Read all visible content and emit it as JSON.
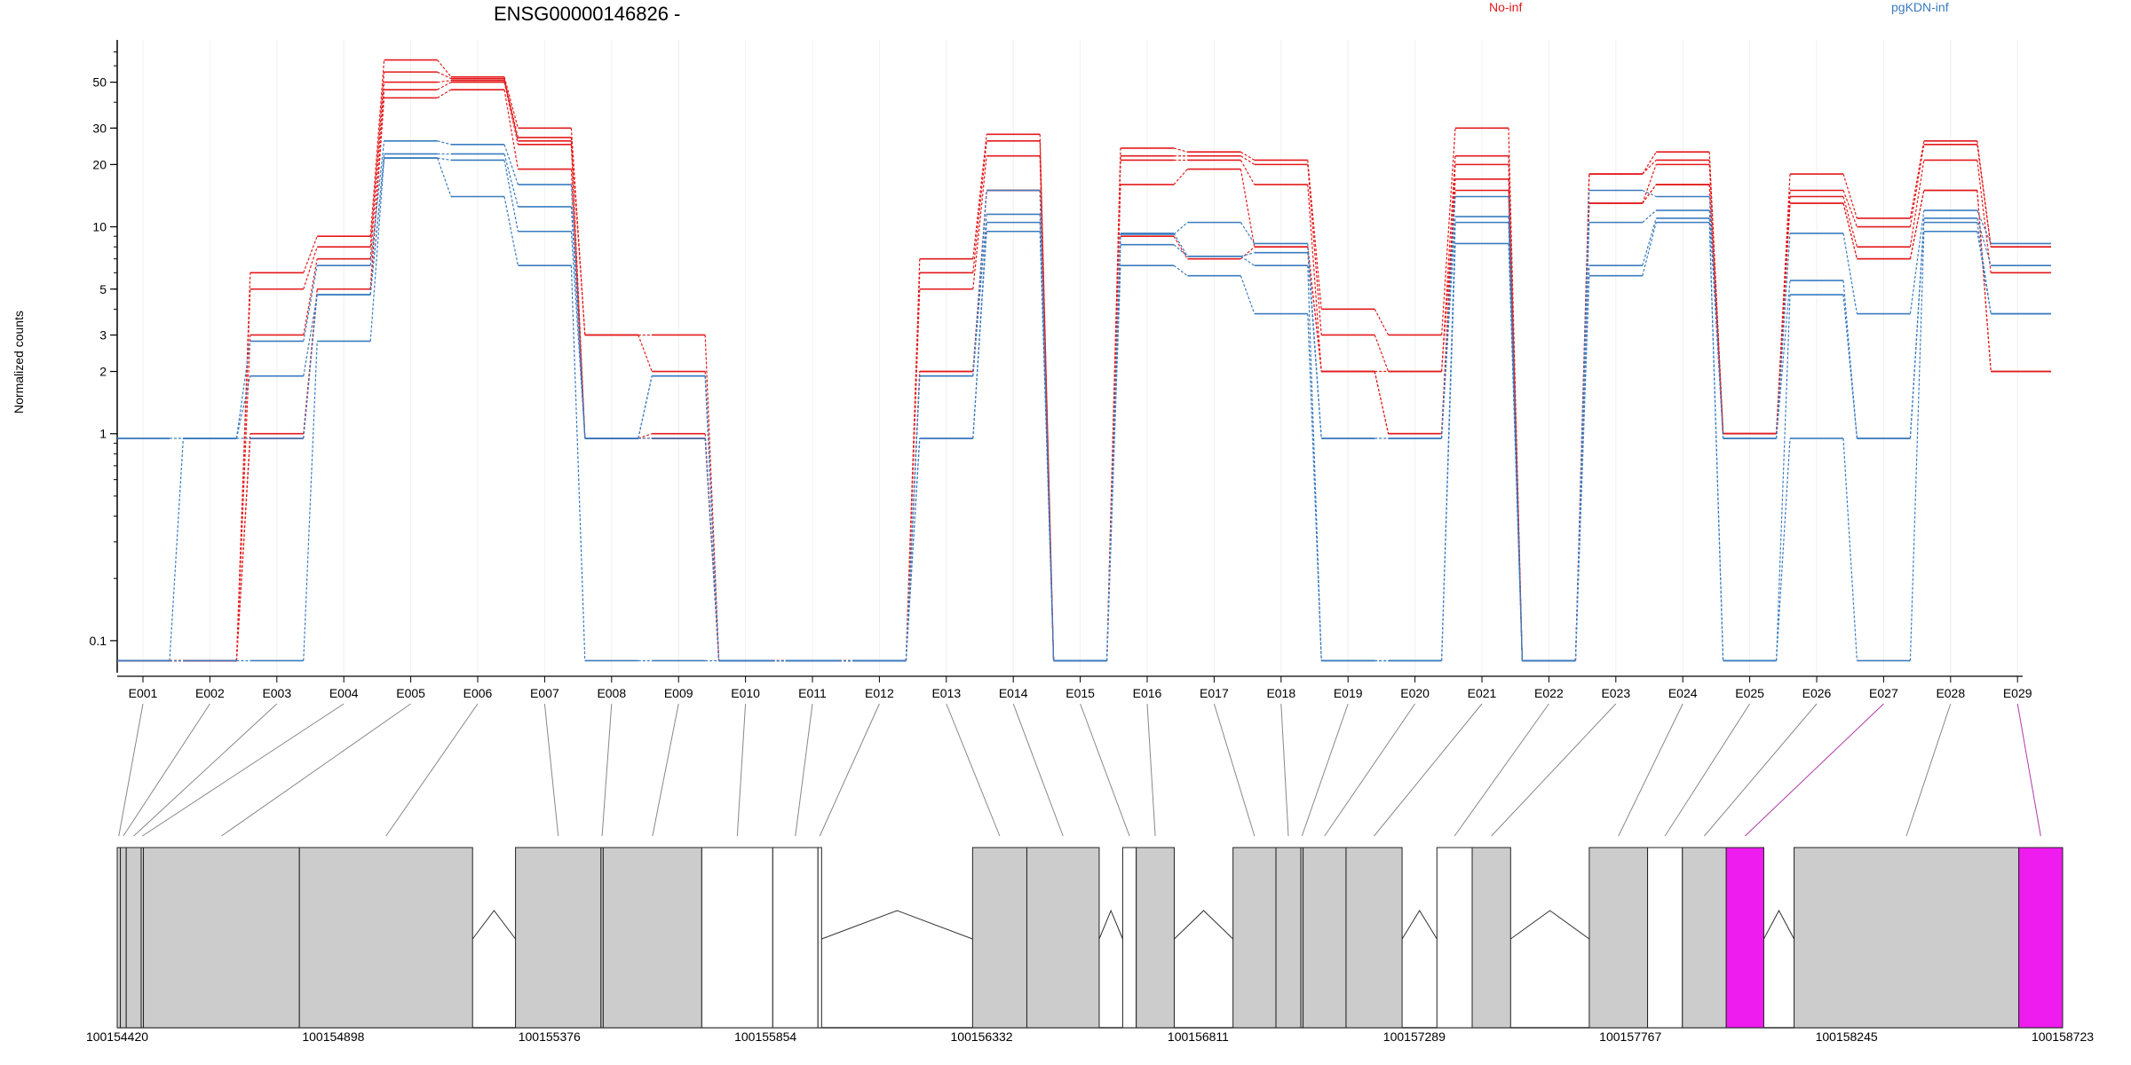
{
  "title": "ENSG00000146826 -",
  "ylabel": "Normalized counts",
  "colors": {
    "no_inf": "#e31a1c",
    "pgkdn_inf": "#3a7bbf",
    "exon_fill": "#cccccc",
    "highlight": "#ee1cee"
  },
  "chart_data": {
    "type": "line",
    "title": "ENSG00000146826 -",
    "ylabel": "Normalized counts",
    "yscale": "log",
    "ylim": [
      0.07,
      80
    ],
    "yticks": [
      0.1,
      1,
      2,
      3,
      5,
      10,
      20,
      30,
      50
    ],
    "ytick_labels": [
      "0.1",
      "1",
      "2",
      "3",
      "5",
      "10",
      "20",
      "30",
      "50"
    ],
    "categories": [
      "E001",
      "E002",
      "E003",
      "E004",
      "E005",
      "E006",
      "E007",
      "E008",
      "E009",
      "E010",
      "E011",
      "E012",
      "E013",
      "E014",
      "E015",
      "E016",
      "E017",
      "E018",
      "E019",
      "E020",
      "E021",
      "E022",
      "E023",
      "E024",
      "E025",
      "E026",
      "E027",
      "E028",
      "E029"
    ],
    "series": [
      {
        "name": "No-inf",
        "values": [
          0.08,
          0.08,
          6,
          9,
          64,
          53,
          30,
          3,
          3,
          0.08,
          0.08,
          0.08,
          7,
          28,
          0.08,
          24,
          23,
          21,
          4,
          3,
          30,
          0.08,
          18,
          23,
          1,
          18,
          11,
          26,
          8
        ]
      },
      {
        "name": "No-inf",
        "values": [
          0.08,
          0.08,
          5,
          8,
          56,
          52,
          27,
          3,
          2,
          0.08,
          0.08,
          0.08,
          6,
          26,
          0.08,
          22,
          22,
          20,
          3,
          2,
          22,
          0.08,
          18,
          21,
          1,
          15,
          10,
          25,
          8
        ]
      },
      {
        "name": "No-inf",
        "values": [
          0.08,
          0.08,
          3,
          7,
          50,
          51,
          26,
          0.95,
          1,
          0.08,
          0.08,
          0.08,
          5,
          22,
          0.08,
          21,
          21,
          16,
          2,
          1,
          20,
          0.08,
          13,
          20,
          1,
          14,
          8,
          21,
          6
        ]
      },
      {
        "name": "No-inf",
        "values": [
          0.08,
          0.08,
          1,
          5,
          46,
          50,
          25,
          0.95,
          0.95,
          0.08,
          0.08,
          0.08,
          2,
          15,
          0.08,
          16,
          19,
          8,
          2,
          1,
          17,
          0.08,
          13,
          16,
          1,
          13,
          7,
          15,
          2
        ]
      },
      {
        "name": "No-inf",
        "values": [
          0.08,
          0.08,
          0.95,
          5,
          42,
          46,
          19,
          0.95,
          0.95,
          0.08,
          0.08,
          0.08,
          2,
          15,
          0.08,
          9,
          7,
          8,
          2,
          2,
          15,
          0.08,
          13,
          16,
          1,
          13,
          7,
          15,
          2
        ]
      },
      {
        "name": "pgKDN-inf",
        "values": [
          0.95,
          0.95,
          2.8,
          6.5,
          26,
          25,
          16,
          0.95,
          1.9,
          0.08,
          0.08,
          0.08,
          1.9,
          15,
          0.08,
          9.2,
          10.5,
          8.3,
          0.95,
          0.95,
          14,
          0.08,
          15,
          14,
          0.95,
          9.3,
          3.8,
          12,
          8.3
        ]
      },
      {
        "name": "pgKDN-inf",
        "values": [
          0.95,
          0.95,
          1.9,
          4.7,
          22.5,
          22.5,
          12.5,
          0.95,
          1.9,
          0.08,
          0.08,
          0.08,
          1.9,
          11.5,
          0.08,
          8.2,
          7.2,
          7.5,
          0.95,
          0.95,
          11.2,
          0.08,
          10.5,
          12,
          0.95,
          5.5,
          0.95,
          11,
          6.5
        ]
      },
      {
        "name": "pgKDN-inf",
        "values": [
          0.08,
          0.95,
          0.95,
          4.7,
          21.5,
          21,
          9.5,
          0.95,
          0.95,
          0.08,
          0.08,
          0.08,
          0.95,
          10.5,
          0.08,
          9.3,
          7.2,
          6.5,
          0.08,
          0.08,
          10.5,
          0.08,
          6.5,
          11,
          0.08,
          4.7,
          0.95,
          10.5,
          3.8
        ]
      },
      {
        "name": "pgKDN-inf",
        "values": [
          0.08,
          0.08,
          0.08,
          2.8,
          21.5,
          14,
          6.5,
          0.08,
          0.08,
          0.08,
          0.08,
          0.08,
          0.95,
          9.5,
          0.08,
          6.5,
          5.8,
          3.8,
          0.08,
          0.08,
          8.3,
          0.08,
          5.8,
          10.5,
          0.08,
          0.95,
          0.08,
          9.5,
          3.8
        ]
      }
    ]
  },
  "legend": [
    {
      "label": "No-inf",
      "color": "#e31a1c"
    },
    {
      "label": "pgKDN-inf",
      "color": "#3a7bbf"
    }
  ],
  "coordinate_axis": {
    "labels": [
      "100154420",
      "100154898",
      "100155376",
      "100155854",
      "100156332",
      "100156811",
      "100157289",
      "100157767",
      "100158245",
      "100158723"
    ],
    "values": [
      100154420,
      100154898,
      100155376,
      100155854,
      100156332,
      100156811,
      100157289,
      100157767,
      100158245,
      100158723
    ]
  },
  "gene_model": {
    "range": [
      100154420,
      100158723
    ],
    "exons": [
      {
        "id": "E001",
        "start": 100154420,
        "end": 100154427,
        "type": "exon"
      },
      {
        "id": "E002",
        "start": 100154427,
        "end": 100154440,
        "type": "exon"
      },
      {
        "id": "E003",
        "start": 100154440,
        "end": 100154473,
        "type": "exon"
      },
      {
        "id": "E004",
        "start": 100154473,
        "end": 100154478,
        "type": "exon"
      },
      {
        "id": "E005",
        "start": 100154478,
        "end": 100154823,
        "type": "exon"
      },
      {
        "id": "E006",
        "start": 100154823,
        "end": 100155206,
        "type": "exon"
      },
      {
        "id": "E007",
        "start": 100155301,
        "end": 100155490,
        "type": "exon"
      },
      {
        "id": "E008",
        "start": 100155490,
        "end": 100155495,
        "type": "exon"
      },
      {
        "id": "E009",
        "start": 100155495,
        "end": 100155713,
        "type": "exon"
      },
      {
        "id": "E010",
        "start": 100155713,
        "end": 100155870,
        "type": "intron"
      },
      {
        "id": "E011",
        "start": 100155870,
        "end": 100155970,
        "type": "intron"
      },
      {
        "id": "E012",
        "start": 100155970,
        "end": 100155978,
        "type": "intron"
      },
      {
        "id": "E013",
        "start": 100156312,
        "end": 100156432,
        "type": "exon"
      },
      {
        "id": "E014",
        "start": 100156432,
        "end": 100156592,
        "type": "exon"
      },
      {
        "id": "E015",
        "start": 100156644,
        "end": 100156674,
        "type": "intron"
      },
      {
        "id": "E016",
        "start": 100156674,
        "end": 100156758,
        "type": "exon"
      },
      {
        "id": "E017",
        "start": 100156888,
        "end": 100156983,
        "type": "exon"
      },
      {
        "id": "E018",
        "start": 100156983,
        "end": 100157038,
        "type": "exon"
      },
      {
        "id": "E019",
        "start": 100157038,
        "end": 100157043,
        "type": "exon"
      },
      {
        "id": "E020",
        "start": 100157043,
        "end": 100157138,
        "type": "exon"
      },
      {
        "id": "E021",
        "start": 100157138,
        "end": 100157262,
        "type": "exon"
      },
      {
        "id": "E022",
        "start": 100157339,
        "end": 100157417,
        "type": "intron"
      },
      {
        "id": "E023",
        "start": 100157417,
        "end": 100157502,
        "type": "exon"
      },
      {
        "id": "E024",
        "start": 100157676,
        "end": 100157805,
        "type": "exon"
      },
      {
        "id": "E025",
        "start": 100157805,
        "end": 100157882,
        "type": "intron"
      },
      {
        "id": "E026",
        "start": 100157882,
        "end": 100157979,
        "type": "exon"
      },
      {
        "id": "E027",
        "start": 100157979,
        "end": 100158062,
        "type": "highlight"
      },
      {
        "id": "E028",
        "start": 100158129,
        "end": 100158626,
        "type": "exon"
      },
      {
        "id": "E029",
        "start": 100158626,
        "end": 100158723,
        "type": "highlight"
      }
    ],
    "junctions": [
      {
        "from": 100155206,
        "to": 100155301
      },
      {
        "from": 100155978,
        "to": 100156312
      },
      {
        "from": 100156592,
        "to": 100156644
      },
      {
        "from": 100156758,
        "to": 100156888
      },
      {
        "from": 100157262,
        "to": 100157339
      },
      {
        "from": 100157502,
        "to": 100157676
      },
      {
        "from": 100158062,
        "to": 100158129
      }
    ]
  }
}
